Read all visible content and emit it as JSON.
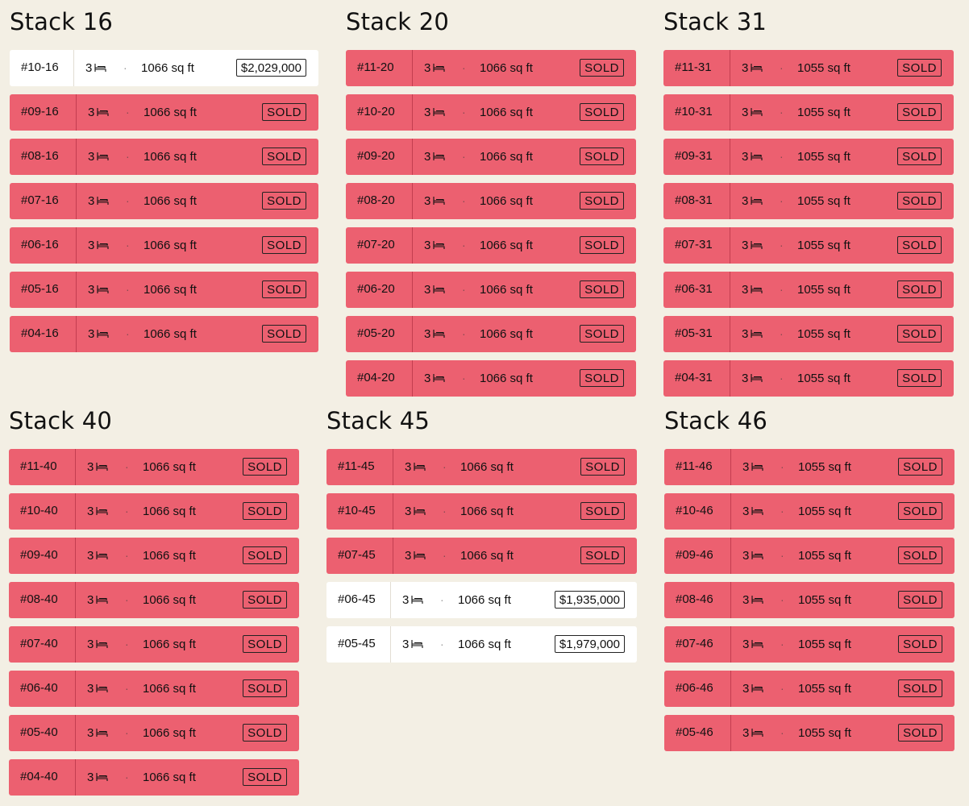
{
  "stacks": [
    {
      "title": "Stack 16",
      "units": [
        {
          "unit": "#10-16",
          "beds": "3",
          "sqft": "1066 sq ft",
          "status": "$2,029,000",
          "sold": false
        },
        {
          "unit": "#09-16",
          "beds": "3",
          "sqft": "1066 sq ft",
          "status": "SOLD",
          "sold": true
        },
        {
          "unit": "#08-16",
          "beds": "3",
          "sqft": "1066 sq ft",
          "status": "SOLD",
          "sold": true
        },
        {
          "unit": "#07-16",
          "beds": "3",
          "sqft": "1066 sq ft",
          "status": "SOLD",
          "sold": true
        },
        {
          "unit": "#06-16",
          "beds": "3",
          "sqft": "1066 sq ft",
          "status": "SOLD",
          "sold": true
        },
        {
          "unit": "#05-16",
          "beds": "3",
          "sqft": "1066 sq ft",
          "status": "SOLD",
          "sold": true
        },
        {
          "unit": "#04-16",
          "beds": "3",
          "sqft": "1066 sq ft",
          "status": "SOLD",
          "sold": true
        }
      ]
    },
    {
      "title": "Stack 20",
      "units": [
        {
          "unit": "#11-20",
          "beds": "3",
          "sqft": "1066 sq ft",
          "status": "SOLD",
          "sold": true
        },
        {
          "unit": "#10-20",
          "beds": "3",
          "sqft": "1066 sq ft",
          "status": "SOLD",
          "sold": true
        },
        {
          "unit": "#09-20",
          "beds": "3",
          "sqft": "1066 sq ft",
          "status": "SOLD",
          "sold": true
        },
        {
          "unit": "#08-20",
          "beds": "3",
          "sqft": "1066 sq ft",
          "status": "SOLD",
          "sold": true
        },
        {
          "unit": "#07-20",
          "beds": "3",
          "sqft": "1066 sq ft",
          "status": "SOLD",
          "sold": true
        },
        {
          "unit": "#06-20",
          "beds": "3",
          "sqft": "1066 sq ft",
          "status": "SOLD",
          "sold": true
        },
        {
          "unit": "#05-20",
          "beds": "3",
          "sqft": "1066 sq ft",
          "status": "SOLD",
          "sold": true
        },
        {
          "unit": "#04-20",
          "beds": "3",
          "sqft": "1066 sq ft",
          "status": "SOLD",
          "sold": true
        }
      ]
    },
    {
      "title": "Stack 31",
      "units": [
        {
          "unit": "#11-31",
          "beds": "3",
          "sqft": "1055 sq ft",
          "status": "SOLD",
          "sold": true
        },
        {
          "unit": "#10-31",
          "beds": "3",
          "sqft": "1055 sq ft",
          "status": "SOLD",
          "sold": true
        },
        {
          "unit": "#09-31",
          "beds": "3",
          "sqft": "1055 sq ft",
          "status": "SOLD",
          "sold": true
        },
        {
          "unit": "#08-31",
          "beds": "3",
          "sqft": "1055 sq ft",
          "status": "SOLD",
          "sold": true
        },
        {
          "unit": "#07-31",
          "beds": "3",
          "sqft": "1055 sq ft",
          "status": "SOLD",
          "sold": true
        },
        {
          "unit": "#06-31",
          "beds": "3",
          "sqft": "1055 sq ft",
          "status": "SOLD",
          "sold": true
        },
        {
          "unit": "#05-31",
          "beds": "3",
          "sqft": "1055 sq ft",
          "status": "SOLD",
          "sold": true
        },
        {
          "unit": "#04-31",
          "beds": "3",
          "sqft": "1055 sq ft",
          "status": "SOLD",
          "sold": true
        }
      ]
    },
    {
      "title": "Stack 40",
      "units": [
        {
          "unit": "#11-40",
          "beds": "3",
          "sqft": "1066 sq ft",
          "status": "SOLD",
          "sold": true
        },
        {
          "unit": "#10-40",
          "beds": "3",
          "sqft": "1066 sq ft",
          "status": "SOLD",
          "sold": true
        },
        {
          "unit": "#09-40",
          "beds": "3",
          "sqft": "1066 sq ft",
          "status": "SOLD",
          "sold": true
        },
        {
          "unit": "#08-40",
          "beds": "3",
          "sqft": "1066 sq ft",
          "status": "SOLD",
          "sold": true
        },
        {
          "unit": "#07-40",
          "beds": "3",
          "sqft": "1066 sq ft",
          "status": "SOLD",
          "sold": true
        },
        {
          "unit": "#06-40",
          "beds": "3",
          "sqft": "1066 sq ft",
          "status": "SOLD",
          "sold": true
        },
        {
          "unit": "#05-40",
          "beds": "3",
          "sqft": "1066 sq ft",
          "status": "SOLD",
          "sold": true
        },
        {
          "unit": "#04-40",
          "beds": "3",
          "sqft": "1066 sq ft",
          "status": "SOLD",
          "sold": true
        }
      ]
    },
    {
      "title": "Stack 45",
      "units": [
        {
          "unit": "#11-45",
          "beds": "3",
          "sqft": "1066 sq ft",
          "status": "SOLD",
          "sold": true
        },
        {
          "unit": "#10-45",
          "beds": "3",
          "sqft": "1066 sq ft",
          "status": "SOLD",
          "sold": true
        },
        {
          "unit": "#07-45",
          "beds": "3",
          "sqft": "1066 sq ft",
          "status": "SOLD",
          "sold": true
        },
        {
          "unit": "#06-45",
          "beds": "3",
          "sqft": "1066 sq ft",
          "status": "$1,935,000",
          "sold": false
        },
        {
          "unit": "#05-45",
          "beds": "3",
          "sqft": "1066 sq ft",
          "status": "$1,979,000",
          "sold": false
        }
      ]
    },
    {
      "title": "Stack 46",
      "units": [
        {
          "unit": "#11-46",
          "beds": "3",
          "sqft": "1055 sq ft",
          "status": "SOLD",
          "sold": true
        },
        {
          "unit": "#10-46",
          "beds": "3",
          "sqft": "1055 sq ft",
          "status": "SOLD",
          "sold": true
        },
        {
          "unit": "#09-46",
          "beds": "3",
          "sqft": "1055 sq ft",
          "status": "SOLD",
          "sold": true
        },
        {
          "unit": "#08-46",
          "beds": "3",
          "sqft": "1055 sq ft",
          "status": "SOLD",
          "sold": true
        },
        {
          "unit": "#07-46",
          "beds": "3",
          "sqft": "1055 sq ft",
          "status": "SOLD",
          "sold": true
        },
        {
          "unit": "#06-46",
          "beds": "3",
          "sqft": "1055 sq ft",
          "status": "SOLD",
          "sold": true
        },
        {
          "unit": "#05-46",
          "beds": "3",
          "sqft": "1055 sq ft",
          "status": "SOLD",
          "sold": true
        }
      ]
    }
  ],
  "icons": {
    "bed": "bed-icon",
    "separator": "·"
  },
  "colors": {
    "sold": "#ec6070",
    "available": "#ffffff",
    "background": "#f3efe4"
  }
}
